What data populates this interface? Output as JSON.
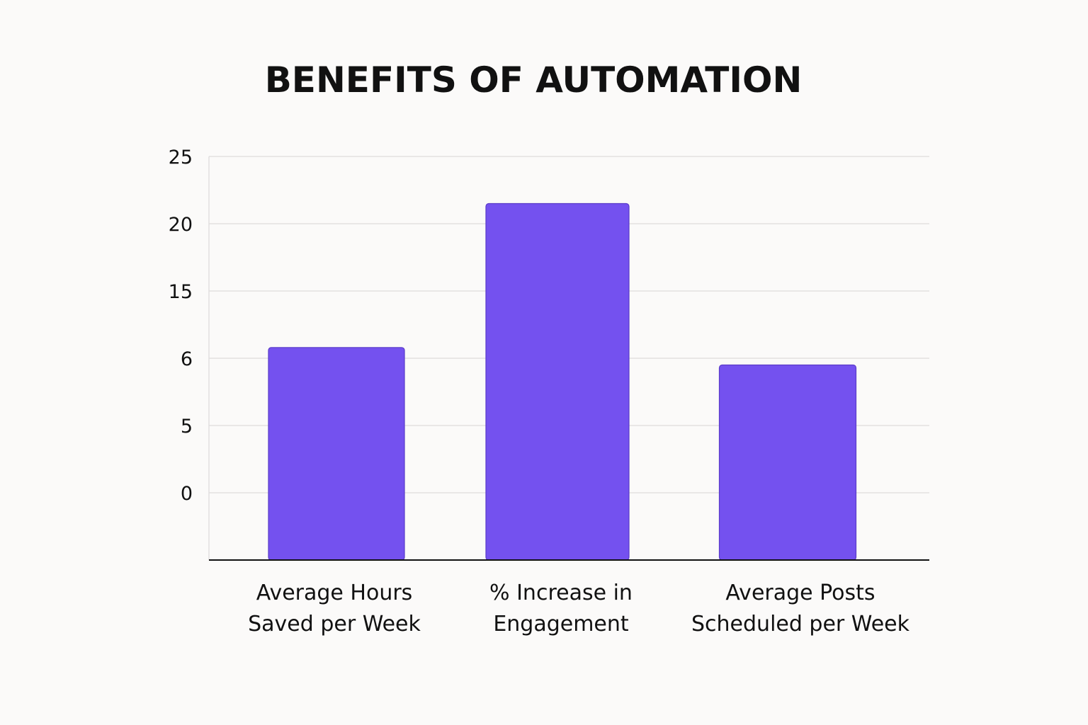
{
  "chart_data": {
    "type": "bar",
    "title": "BENEFITS OF AUTOMATION",
    "categories": [
      [
        "Average Hours",
        "Saved per Week"
      ],
      [
        "% Increase in",
        "Engagement"
      ],
      [
        "Average Posts",
        "Scheduled per Week"
      ]
    ],
    "values": [
      10.8,
      21.5,
      9.5
    ],
    "y_tick_labels": [
      "0",
      "5",
      "6",
      "15",
      "20",
      "25"
    ],
    "ylim": [
      -5,
      25
    ],
    "grid": true,
    "bar_color": "#7451ef",
    "bar_edge_color": "#5b3cc9",
    "xlabel": "",
    "ylabel": ""
  }
}
